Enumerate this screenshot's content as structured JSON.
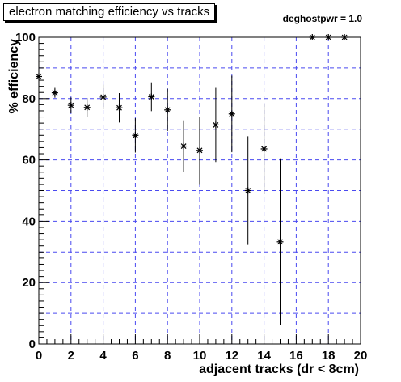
{
  "chart_data": {
    "type": "scatter",
    "title": "electron matching efficiency vs tracks",
    "annotation": "deghostpwr = 1.0",
    "xlabel": "adjacent tracks (dr < 8cm)",
    "ylabel": "% efficiency",
    "xlim": [
      0,
      20
    ],
    "ylim": [
      0,
      100
    ],
    "x_ticks": [
      0,
      2,
      4,
      6,
      8,
      10,
      12,
      14,
      16,
      18,
      20
    ],
    "y_ticks": [
      0,
      20,
      40,
      60,
      80,
      100
    ],
    "grid": true,
    "marker": "asterisk",
    "series": [
      {
        "x": [
          0,
          1,
          2,
          3,
          4,
          5,
          6,
          7,
          8,
          9,
          10,
          11,
          12,
          13,
          14,
          15,
          17,
          18,
          19
        ],
        "y": [
          87.2,
          81.9,
          77.8,
          77.1,
          80.5,
          77.0,
          68.0,
          80.6,
          76.3,
          64.5,
          63.1,
          71.4,
          75.0,
          50.0,
          63.6,
          33.3,
          100,
          100,
          100
        ],
        "err_low": [
          1.2,
          1.6,
          2.6,
          3.1,
          4.0,
          4.8,
          5.6,
          4.7,
          6.9,
          8.4,
          11.0,
          12.1,
          12.5,
          17.7,
          14.8,
          27.2,
          0,
          0,
          0
        ],
        "err_high": [
          1.2,
          1.6,
          2.6,
          3.1,
          4.0,
          4.8,
          5.6,
          4.7,
          6.9,
          8.4,
          11.0,
          12.1,
          12.5,
          17.7,
          14.8,
          27.2,
          0,
          0,
          0
        ]
      }
    ]
  }
}
